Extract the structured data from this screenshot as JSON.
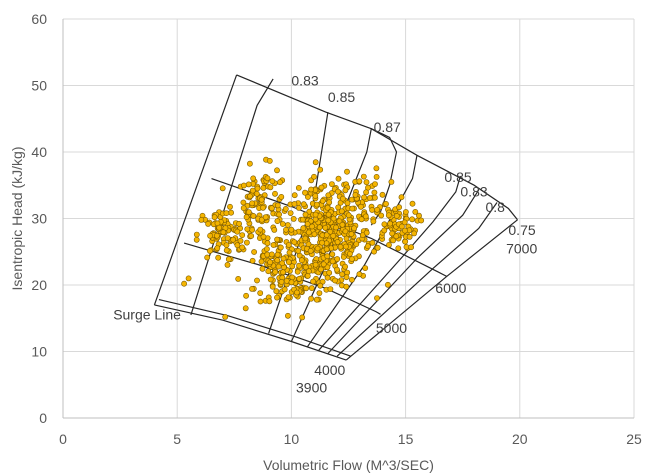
{
  "chart_data": {
    "type": "scatter",
    "xlabel": "Volumetric Flow (M^3/SEC)",
    "ylabel": "Isentropic Head (kJ/kg)",
    "xlim": [
      0,
      25
    ],
    "ylim": [
      0,
      60
    ],
    "x_ticks": [
      "0",
      "5",
      "10",
      "15",
      "20",
      "25"
    ],
    "y_ticks": [
      "0",
      "10",
      "20",
      "30",
      "40",
      "50",
      "60"
    ],
    "grid": true,
    "point_color": "#f4b400",
    "clusters": [
      {
        "cx": 11.5,
        "cy": 27.0,
        "sx": 1.0,
        "sy": 3.5,
        "n": 420
      },
      {
        "cx": 8.7,
        "cy": 31.5,
        "sx": 0.6,
        "sy": 3.0,
        "n": 120
      },
      {
        "cx": 6.9,
        "cy": 27.5,
        "sx": 0.5,
        "sy": 2.0,
        "n": 80
      },
      {
        "cx": 10.0,
        "cy": 20.5,
        "sx": 0.8,
        "sy": 1.8,
        "n": 90
      },
      {
        "cx": 14.5,
        "cy": 29.0,
        "sx": 0.5,
        "sy": 1.8,
        "n": 80
      },
      {
        "cx": 12.6,
        "cy": 33.5,
        "sx": 0.8,
        "sy": 2.0,
        "n": 60
      },
      {
        "cx": 9.2,
        "cy": 23.5,
        "sx": 0.4,
        "sy": 1.0,
        "n": 30
      }
    ],
    "isolated_points": [
      [
        5.5,
        21.0
      ],
      [
        5.3,
        20.2
      ],
      [
        7.1,
        15.2
      ],
      [
        8.0,
        16.5
      ]
    ],
    "speed_lines": [
      {
        "label": "3900",
        "points": [
          [
            4.0,
            17.0
          ],
          [
            7.0,
            14.7
          ],
          [
            10.0,
            11.5
          ],
          [
            12.4,
            8.7
          ]
        ]
      },
      {
        "label": "4000",
        "points": [
          [
            4.2,
            17.8
          ],
          [
            7.2,
            15.4
          ],
          [
            10.2,
            12.2
          ],
          [
            12.6,
            9.3
          ]
        ]
      },
      {
        "label": "5000",
        "points": [
          [
            5.3,
            26.3
          ],
          [
            8.6,
            23.0
          ],
          [
            11.5,
            19.5
          ],
          [
            13.7,
            16.0
          ],
          [
            13.9,
            15.6
          ]
        ]
      },
      {
        "label": "6000",
        "points": [
          [
            6.5,
            36.0
          ],
          [
            10.0,
            31.8
          ],
          [
            13.5,
            27.0
          ],
          [
            16.4,
            22.0
          ],
          [
            16.8,
            21.3
          ]
        ]
      },
      {
        "label": "7000",
        "points": [
          [
            7.6,
            51.6
          ],
          [
            11.5,
            46.0
          ],
          [
            13.5,
            43.5
          ],
          [
            15.5,
            39.5
          ],
          [
            18.0,
            35.0
          ],
          [
            19.5,
            31.5
          ],
          [
            19.9,
            29.8
          ]
        ]
      }
    ],
    "flow_lines": [
      {
        "points": [
          [
            4.0,
            17.0
          ],
          [
            7.6,
            51.6
          ]
        ]
      },
      {
        "points": [
          [
            5.6,
            15.5
          ],
          [
            8.5,
            47.0
          ],
          [
            9.2,
            51.0
          ]
        ]
      },
      {
        "points": [
          [
            9.0,
            12.7
          ],
          [
            11.0,
            33.0
          ],
          [
            11.6,
            46.0
          ]
        ]
      },
      {
        "points": [
          [
            10.0,
            11.5
          ],
          [
            11.5,
            23.0
          ],
          [
            12.5,
            33.0
          ],
          [
            13.3,
            40.0
          ],
          [
            13.5,
            43.5
          ]
        ]
      },
      {
        "points": [
          [
            10.7,
            10.7
          ],
          [
            13.2,
            23.0
          ],
          [
            14.5,
            31.0
          ],
          [
            15.3,
            36.0
          ],
          [
            15.5,
            39.5
          ]
        ]
      },
      {
        "points": [
          [
            11.2,
            10.2
          ],
          [
            14.8,
            24.0
          ],
          [
            16.2,
            29.5
          ],
          [
            17.2,
            34.0
          ],
          [
            17.4,
            36.4
          ]
        ]
      },
      {
        "points": [
          [
            11.6,
            9.7
          ],
          [
            15.5,
            24.0
          ],
          [
            17.5,
            30.5
          ],
          [
            18.2,
            34.3
          ]
        ]
      },
      {
        "points": [
          [
            12.0,
            9.3
          ],
          [
            16.2,
            22.5
          ],
          [
            18.2,
            28.5
          ],
          [
            19.0,
            32.4
          ]
        ]
      },
      {
        "points": [
          [
            12.4,
            8.7
          ],
          [
            16.8,
            21.3
          ],
          [
            19.9,
            29.8
          ]
        ]
      }
    ],
    "efficiency_island": [
      [
        13.5,
        43.5
      ],
      [
        14.3,
        42.2
      ],
      [
        14.6,
        40.0
      ],
      [
        14.3,
        35.0
      ],
      [
        13.9,
        31.0
      ],
      [
        13.5,
        29.0
      ]
    ],
    "annotations": [
      {
        "text": "0.83",
        "x": 10.0,
        "y": 50.0
      },
      {
        "text": "0.85",
        "x": 11.6,
        "y": 47.5
      },
      {
        "text": "0.87",
        "x": 13.6,
        "y": 43.0
      },
      {
        "text": "0.85",
        "x": 16.7,
        "y": 35.5
      },
      {
        "text": "0.83",
        "x": 17.4,
        "y": 33.3
      },
      {
        "text": "0.8",
        "x": 18.5,
        "y": 31.0
      },
      {
        "text": "0.75",
        "x": 19.5,
        "y": 27.5
      },
      {
        "text": "7000",
        "x": 19.4,
        "y": 24.7
      },
      {
        "text": "6000",
        "x": 16.3,
        "y": 18.8
      },
      {
        "text": "5000",
        "x": 13.7,
        "y": 12.8
      },
      {
        "text": "4000",
        "x": 11.0,
        "y": 6.5
      },
      {
        "text": "3900",
        "x": 10.2,
        "y": 3.8
      },
      {
        "text": "Surge Line",
        "x": 2.2,
        "y": 14.8
      }
    ]
  }
}
